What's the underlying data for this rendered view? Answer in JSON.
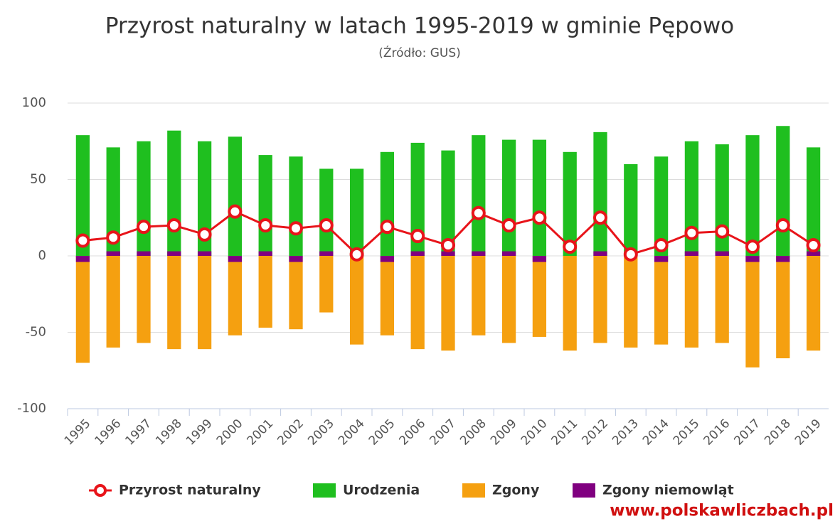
{
  "chart_data": {
    "type": "bar",
    "title": "Przyrost naturalny w latach 1995-2019 w gminie Pępowo",
    "subtitle": "(Źródło: GUS)",
    "watermark": "www.polskawliczbach.pl",
    "categories": [
      "1995",
      "1996",
      "1997",
      "1998",
      "1999",
      "2000",
      "2001",
      "2002",
      "2003",
      "2004",
      "2005",
      "2006",
      "2007",
      "2008",
      "2009",
      "2010",
      "2011",
      "2012",
      "2013",
      "2014",
      "2015",
      "2016",
      "2017",
      "2018",
      "2019"
    ],
    "ylim": [
      -100,
      100
    ],
    "yticks": [
      -100,
      -50,
      0,
      50,
      100
    ],
    "grid": true,
    "series": [
      {
        "name": "Przyrost naturalny",
        "type": "line",
        "color": "#e8141a",
        "values": [
          10,
          12,
          19,
          20,
          14,
          29,
          20,
          18,
          20,
          1,
          19,
          13,
          7,
          28,
          20,
          25,
          6,
          25,
          1,
          7,
          15,
          16,
          6,
          20,
          7
        ]
      },
      {
        "name": "Urodzenia",
        "color": "#1fbf1f",
        "values": [
          79,
          71,
          75,
          82,
          75,
          78,
          66,
          65,
          57,
          57,
          68,
          74,
          69,
          79,
          76,
          76,
          68,
          81,
          60,
          65,
          75,
          73,
          79,
          85,
          71
        ]
      },
      {
        "name": "Zgony",
        "color": "#f5a010",
        "values": [
          -70,
          -60,
          -57,
          -61,
          -61,
          -52,
          -47,
          -48,
          -37,
          -58,
          -52,
          -61,
          -62,
          -52,
          -57,
          -53,
          -62,
          -57,
          -60,
          -58,
          -60,
          -57,
          -73,
          -67,
          -62
        ]
      },
      {
        "name": "Zgony niemowląt",
        "color": "#800080",
        "values": [
          -4,
          3,
          3,
          3,
          3,
          -4,
          3,
          -4,
          3,
          0,
          -4,
          3,
          3,
          3,
          3,
          -4,
          0,
          3,
          0,
          -4,
          3,
          3,
          -4,
          -4,
          3
        ]
      }
    ]
  }
}
